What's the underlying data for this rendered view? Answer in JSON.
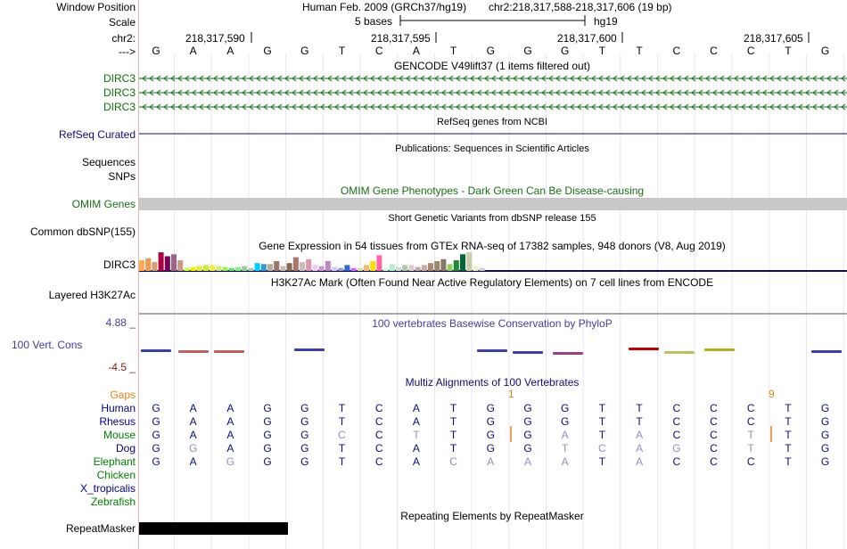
{
  "header": {
    "window_position_label": "Window Position",
    "scale_label": "Scale",
    "chr_label": "chr2:",
    "strand_label": "--->",
    "assembly": "Human Feb. 2009 (GRCh37/hg19)",
    "position": "chr2:218,317,588-218,317,606 (19 bp)",
    "scale_text": "5 bases",
    "scale_db": "hg19",
    "coords": [
      "218,317,590",
      "218,317,595",
      "218,317,600",
      "218,317,605"
    ]
  },
  "reference_bases": [
    "G",
    "A",
    "A",
    "G",
    "G",
    "T",
    "C",
    "A",
    "T",
    "G",
    "G",
    "G",
    "T",
    "T",
    "C",
    "C",
    "C",
    "T",
    "G"
  ],
  "tracks": {
    "gencode_title": "GENCODE V49lift37 (1 items filtered out)",
    "gencode_items": [
      "DIRC3",
      "DIRC3",
      "DIRC3"
    ],
    "refseq_title": "RefSeq genes from NCBI",
    "refseq_label": "RefSeq Curated",
    "pubs_title": "Publications: Sequences in Scientific Articles",
    "pubs_labels": [
      "Sequences",
      "SNPs"
    ],
    "omim_title": "OMIM Gene Phenotypes - Dark Green Can Be Disease-causing",
    "omim_label": "OMIM Genes",
    "dbsnp_title": "Short Genetic Variants from dbSNP release 155",
    "dbsnp_label": "Common dbSNP(155)",
    "gtex_title": "Gene Expression in 54 tissues from GTEx RNA-seq of 17382 samples, 948 donors (V8, Aug 2019)",
    "gtex_label": "DIRC3",
    "h3k27ac_title": "H3K27Ac Mark (Often Found Near Active Regulatory Elements) on 7 cell lines from ENCODE",
    "h3k27ac_label": "Layered H3K27Ac",
    "phylop_title": "100 vertebrates Basewise Conservation by PhyloP",
    "phylop_label": "100 Vert. Cons",
    "phylop_max": "4.88 _",
    "phylop_min": "-4.5 _",
    "multiz_title": "Multiz Alignments of 100 Vertebrates",
    "gaps_label": "Gaps",
    "gap_counts": [
      "1",
      "9"
    ],
    "repeat_title": "Repeating Elements by RepeatMasker",
    "repeat_label": "RepeatMasker"
  },
  "alignment": [
    {
      "species": "Human",
      "color": "#000080",
      "bases": [
        "G",
        "A",
        "A",
        "G",
        "G",
        "T",
        "C",
        "A",
        "T",
        "G",
        "G",
        "G",
        "T",
        "T",
        "C",
        "C",
        "C",
        "T",
        "G"
      ]
    },
    {
      "species": "Rhesus",
      "color": "#000080",
      "bases": [
        "G",
        "A",
        "A",
        "G",
        "G",
        "T",
        "C",
        "A",
        "T",
        "G",
        "G",
        "G",
        "T",
        "T",
        "C",
        "C",
        "C",
        "T",
        "G"
      ]
    },
    {
      "species": "Mouse",
      "color": "#008000",
      "bases": [
        "G",
        "A",
        "A",
        "G",
        "G",
        "C",
        "C",
        "T",
        "T",
        "G",
        "G",
        "A",
        "T",
        "A",
        "C",
        "C",
        "T",
        "T",
        "G"
      ]
    },
    {
      "species": "Dog",
      "color": "#000080",
      "bases": [
        "G",
        "G",
        "A",
        "G",
        "G",
        "T",
        "C",
        "A",
        "T",
        "G",
        "G",
        "T",
        "C",
        "A",
        "G",
        "C",
        "T",
        "T",
        "G"
      ]
    },
    {
      "species": "Elephant",
      "color": "#008000",
      "bases": [
        "G",
        "A",
        "G",
        "G",
        "G",
        "T",
        "C",
        "A",
        "C",
        "A",
        "A",
        "A",
        "T",
        "A",
        "C",
        "C",
        "C",
        "T",
        "G"
      ]
    },
    {
      "species": "Chicken",
      "color": "#008000",
      "bases": []
    },
    {
      "species": "X_tropicalis",
      "color": "#000080",
      "bases": []
    },
    {
      "species": "Zebrafish",
      "color": "#008000",
      "bases": []
    }
  ],
  "gtex_values": [
    0.55,
    0.65,
    0.45,
    0.95,
    0.75,
    0.85,
    0.55,
    0.15,
    0.2,
    0.25,
    0.3,
    0.3,
    0.25,
    0.2,
    0.15,
    0.2,
    0.25,
    0.15,
    0.4,
    0.35,
    0.35,
    0.5,
    0.25,
    0.4,
    0.7,
    0.45,
    0.6,
    0.3,
    0.25,
    0.5,
    0.2,
    0.15,
    0.3,
    0.15,
    0.15,
    0.3,
    0.5,
    0.8,
    0.15,
    0.35,
    0.2,
    0.3,
    0.3,
    0.2,
    0.3,
    0.4,
    0.5,
    0.6,
    0.35,
    0.55,
    0.85,
    0.95,
    0.25,
    0.15
  ],
  "gtex_colors": [
    "#ffaa55",
    "#ee9955",
    "#d0a070",
    "#aa0044",
    "#770055",
    "#996688",
    "#cc9988",
    "#ccff33",
    "#eeee00",
    "#ddee33",
    "#ccee44",
    "#eeee44",
    "#ccee77",
    "#99ee55",
    "#66dd66",
    "#88ee88",
    "#99cc99",
    "#aaccaa",
    "#00ccff",
    "#3399cc",
    "#bbaa99",
    "#997766",
    "#ccbbaa",
    "#886655",
    "#aa7766",
    "#ccbbbb",
    "#dd99aa",
    "#eeccee",
    "#cc99cc",
    "#bb88bb",
    "#ccccff",
    "#9999cc",
    "#3366cc",
    "#cc66ff",
    "#ddddaa",
    "#eebb77",
    "#ffdd00",
    "#ff66aa",
    "#ccffcc",
    "#bbeecc",
    "#ccddcc",
    "#aaccaa",
    "#ddcccc",
    "#bbaaaa",
    "#ccaa99",
    "#aa8877",
    "#998866",
    "#887766",
    "#99cc66",
    "#228833",
    "#006633",
    "#ccccaa",
    "#eeeecc",
    "#cccccc"
  ],
  "colors": {
    "track_title": "#000000",
    "gencode": "#0c6e0c",
    "refseq": "#0c0c78",
    "omim": "#1a6e1a",
    "phylop": "#3f3fa0",
    "gaps": "#e0861a",
    "min_red": "#7a1a1a",
    "repeat_black": "#000000",
    "omim_bar": "#c8c8c8"
  }
}
